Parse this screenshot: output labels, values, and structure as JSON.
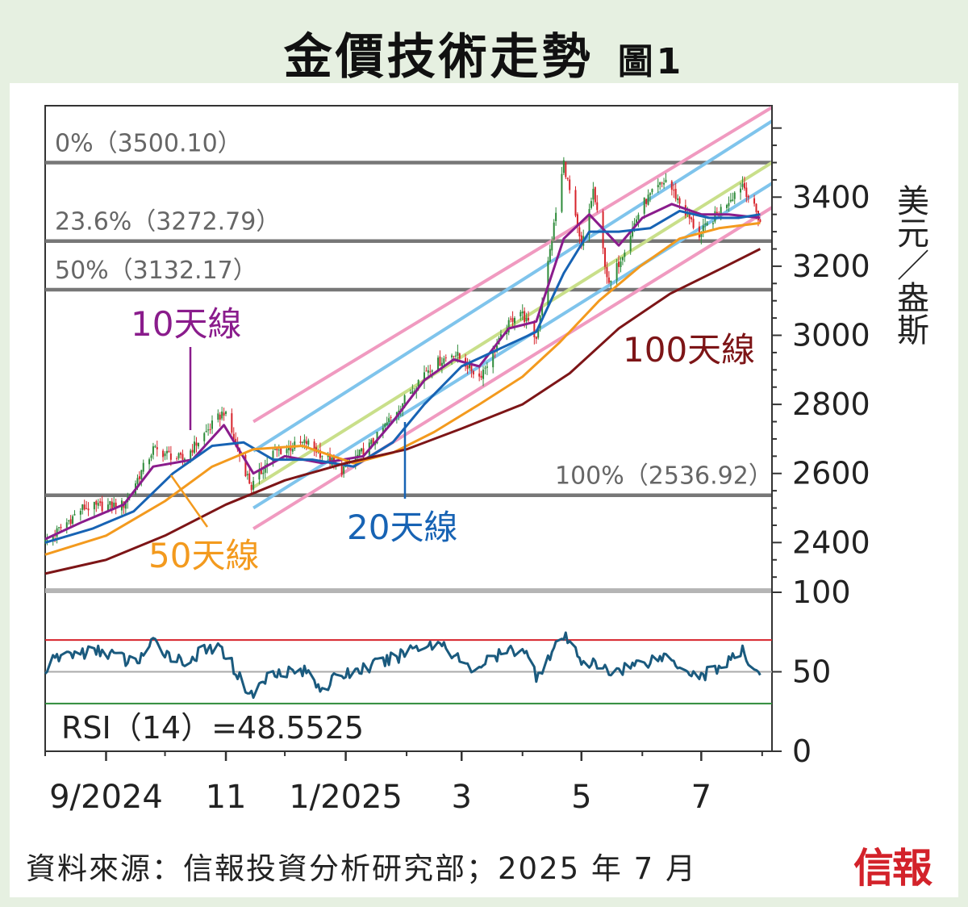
{
  "title": "金價技術走勢",
  "figure_label": "圖1",
  "source": "資料來源：信報投資分析研究部；2025 年 7 月",
  "logo_text": "信報",
  "y_unit_label": "美元／盎斯",
  "colors": {
    "price_up": "#2e8b3a",
    "price_down": "#d7232b",
    "ma10": "#8a1c8c",
    "ma20": "#1763b4",
    "ma50": "#f39a1e",
    "ma100": "#7d1517",
    "channel_pink": "#f09ac0",
    "channel_blue": "#7fc4ec",
    "channel_mid": "#c9df8a",
    "fib_line": "#777777",
    "rsi_line": "#1a5a7e",
    "rsi_over": "#d7232b",
    "rsi_under": "#2e8b3a",
    "rsi_mid": "#aaaaaa"
  },
  "chart_data": [
    {
      "type": "line",
      "title": "",
      "ylabel": "美元／盎斯",
      "ylim": [
        2270,
        3660
      ],
      "y_ticks": [
        2400,
        2600,
        2800,
        3000,
        3200,
        3400
      ],
      "x_ticks": [
        {
          "date": "2024-09-01",
          "label": "9/2024"
        },
        {
          "date": "2024-11-01",
          "label": "11"
        },
        {
          "date": "2025-01-01",
          "label": "1/2025"
        },
        {
          "date": "2025-03-01",
          "label": "3"
        },
        {
          "date": "2025-05-01",
          "label": "5"
        },
        {
          "date": "2025-07-01",
          "label": "7"
        }
      ],
      "x_range": [
        "2024-08-01",
        "2025-08-06"
      ],
      "fibonacci_levels": [
        {
          "label": "0%",
          "value": 3500.1
        },
        {
          "label": "23.6%",
          "value": 3272.79
        },
        {
          "label": "50%",
          "value": 3132.17
        },
        {
          "label": "100%",
          "value": 2536.92
        }
      ],
      "series": [
        {
          "name": "10天線",
          "color_key": "ma10",
          "points": [
            [
              "2024-08-01",
              2410
            ],
            [
              "2024-08-20",
              2460
            ],
            [
              "2024-09-10",
              2510
            ],
            [
              "2024-09-25",
              2620
            ],
            [
              "2024-10-15",
              2640
            ],
            [
              "2024-10-31",
              2740
            ],
            [
              "2024-11-15",
              2600
            ],
            [
              "2024-12-01",
              2650
            ],
            [
              "2024-12-20",
              2630
            ],
            [
              "2025-01-10",
              2650
            ],
            [
              "2025-01-25",
              2750
            ],
            [
              "2025-02-10",
              2870
            ],
            [
              "2025-02-25",
              2930
            ],
            [
              "2025-03-10",
              2910
            ],
            [
              "2025-03-25",
              3020
            ],
            [
              "2025-04-08",
              3040
            ],
            [
              "2025-04-22",
              3280
            ],
            [
              "2025-05-05",
              3350
            ],
            [
              "2025-05-20",
              3260
            ],
            [
              "2025-06-01",
              3340
            ],
            [
              "2025-06-16",
              3380
            ],
            [
              "2025-07-01",
              3350
            ],
            [
              "2025-07-15",
              3350
            ],
            [
              "2025-07-31",
              3340
            ]
          ]
        },
        {
          "name": "20天線",
          "color_key": "ma20",
          "points": [
            [
              "2024-08-01",
              2400
            ],
            [
              "2024-08-25",
              2440
            ],
            [
              "2024-09-15",
              2490
            ],
            [
              "2024-10-05",
              2600
            ],
            [
              "2024-10-25",
              2680
            ],
            [
              "2024-11-10",
              2690
            ],
            [
              "2024-11-25",
              2640
            ],
            [
              "2024-12-15",
              2640
            ],
            [
              "2025-01-05",
              2620
            ],
            [
              "2025-01-25",
              2690
            ],
            [
              "2025-02-10",
              2800
            ],
            [
              "2025-03-01",
              2910
            ],
            [
              "2025-03-20",
              2960
            ],
            [
              "2025-04-08",
              3010
            ],
            [
              "2025-04-22",
              3180
            ],
            [
              "2025-05-05",
              3300
            ],
            [
              "2025-05-20",
              3300
            ],
            [
              "2025-06-05",
              3310
            ],
            [
              "2025-06-20",
              3360
            ],
            [
              "2025-07-05",
              3340
            ],
            [
              "2025-07-20",
              3340
            ],
            [
              "2025-07-31",
              3350
            ]
          ]
        },
        {
          "name": "50天線",
          "color_key": "ma50",
          "points": [
            [
              "2024-08-01",
              2365
            ],
            [
              "2024-09-01",
              2420
            ],
            [
              "2024-10-01",
              2520
            ],
            [
              "2024-10-25",
              2620
            ],
            [
              "2024-11-15",
              2670
            ],
            [
              "2024-12-10",
              2680
            ],
            [
              "2025-01-05",
              2630
            ],
            [
              "2025-01-25",
              2660
            ],
            [
              "2025-02-15",
              2720
            ],
            [
              "2025-03-10",
              2800
            ],
            [
              "2025-04-01",
              2880
            ],
            [
              "2025-04-20",
              2980
            ],
            [
              "2025-05-10",
              3100
            ],
            [
              "2025-05-31",
              3200
            ],
            [
              "2025-06-20",
              3280
            ],
            [
              "2025-07-10",
              3310
            ],
            [
              "2025-07-31",
              3325
            ]
          ]
        },
        {
          "name": "100天線",
          "color_key": "ma100",
          "points": [
            [
              "2024-08-01",
              2310
            ],
            [
              "2024-09-01",
              2350
            ],
            [
              "2024-10-01",
              2420
            ],
            [
              "2024-11-01",
              2510
            ],
            [
              "2024-12-01",
              2580
            ],
            [
              "2025-01-01",
              2630
            ],
            [
              "2025-02-01",
              2670
            ],
            [
              "2025-03-01",
              2730
            ],
            [
              "2025-04-01",
              2800
            ],
            [
              "2025-04-25",
              2890
            ],
            [
              "2025-05-20",
              3020
            ],
            [
              "2025-06-15",
              3120
            ],
            [
              "2025-07-10",
              3190
            ],
            [
              "2025-07-31",
              3250
            ]
          ]
        }
      ],
      "channel_lines": [
        {
          "color_key": "channel_pink",
          "start": [
            "2024-11-15",
            2750
          ],
          "end": [
            "2025-08-06",
            3660
          ]
        },
        {
          "color_key": "channel_blue",
          "start": [
            "2024-11-15",
            2665
          ],
          "end": [
            "2025-08-06",
            3620
          ]
        },
        {
          "color_key": "channel_mid",
          "start": [
            "2024-11-15",
            2560
          ],
          "end": [
            "2025-08-06",
            3500
          ]
        },
        {
          "color_key": "channel_blue",
          "start": [
            "2024-11-15",
            2500
          ],
          "end": [
            "2025-08-06",
            3440
          ]
        },
        {
          "color_key": "channel_pink",
          "start": [
            "2024-11-15",
            2440
          ],
          "end": [
            "2025-08-06",
            3370
          ]
        }
      ],
      "price_anchors": [
        [
          "2024-08-01",
          2400
        ],
        [
          "2024-08-20",
          2500
        ],
        [
          "2024-09-10",
          2510
        ],
        [
          "2024-09-25",
          2670
        ],
        [
          "2024-10-10",
          2640
        ],
        [
          "2024-10-31",
          2780
        ],
        [
          "2024-11-14",
          2560
        ],
        [
          "2024-11-25",
          2660
        ],
        [
          "2024-12-12",
          2690
        ],
        [
          "2024-12-30",
          2610
        ],
        [
          "2025-01-15",
          2690
        ],
        [
          "2025-02-11",
          2900
        ],
        [
          "2025-02-25",
          2950
        ],
        [
          "2025-03-10",
          2880
        ],
        [
          "2025-03-30",
          3080
        ],
        [
          "2025-04-08",
          2990
        ],
        [
          "2025-04-22",
          3500
        ],
        [
          "2025-05-01",
          3250
        ],
        [
          "2025-05-07",
          3420
        ],
        [
          "2025-05-15",
          3140
        ],
        [
          "2025-06-01",
          3380
        ],
        [
          "2025-06-13",
          3450
        ],
        [
          "2025-06-30",
          3290
        ],
        [
          "2025-07-22",
          3440
        ],
        [
          "2025-07-31",
          3330
        ]
      ],
      "labels": [
        {
          "text": "10天線",
          "color_key": "ma10"
        },
        {
          "text": "20天線",
          "color_key": "ma20"
        },
        {
          "text": "50天線",
          "color_key": "ma50"
        },
        {
          "text": "100天線",
          "color_key": "ma100"
        }
      ]
    },
    {
      "type": "line",
      "title": "",
      "series_name": "RSI(14)",
      "ylim": [
        0,
        100
      ],
      "y_ticks": [
        0,
        50,
        100
      ],
      "overbought": 70,
      "oversold": 30,
      "midline": 50,
      "value_label": "RSI（14）=48.5525",
      "anchors": [
        [
          "2024-08-01",
          52
        ],
        [
          "2024-08-10",
          61
        ],
        [
          "2024-09-01",
          63
        ],
        [
          "2024-09-15",
          55
        ],
        [
          "2024-09-25",
          68
        ],
        [
          "2024-10-10",
          56
        ],
        [
          "2024-10-25",
          65
        ],
        [
          "2024-11-01",
          62
        ],
        [
          "2024-11-07",
          48
        ],
        [
          "2024-11-14",
          35
        ],
        [
          "2024-11-25",
          51
        ],
        [
          "2024-12-12",
          50
        ],
        [
          "2024-12-20",
          40
        ],
        [
          "2024-12-30",
          48
        ],
        [
          "2025-01-10",
          52
        ],
        [
          "2025-01-25",
          58
        ],
        [
          "2025-02-05",
          66
        ],
        [
          "2025-02-20",
          68
        ],
        [
          "2025-03-05",
          51
        ],
        [
          "2025-03-20",
          60
        ],
        [
          "2025-04-01",
          66
        ],
        [
          "2025-04-08",
          48
        ],
        [
          "2025-04-22",
          72
        ],
        [
          "2025-05-01",
          58
        ],
        [
          "2025-05-15",
          50
        ],
        [
          "2025-06-01",
          56
        ],
        [
          "2025-06-13",
          60
        ],
        [
          "2025-06-30",
          47
        ],
        [
          "2025-07-10",
          53
        ],
        [
          "2025-07-22",
          62
        ],
        [
          "2025-07-31",
          48.55
        ]
      ]
    }
  ]
}
